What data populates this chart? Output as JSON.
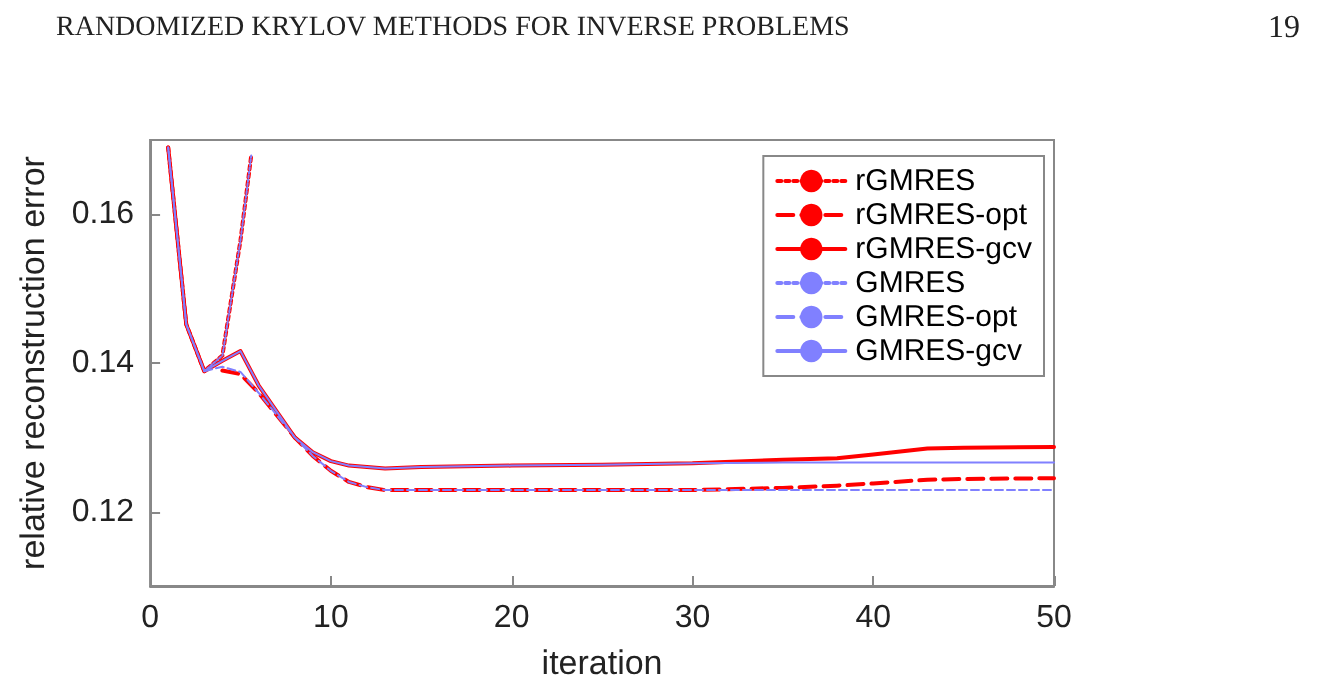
{
  "chart_data": {
    "type": "line",
    "xlabel": "iteration",
    "ylabel": "relative reconstruction error",
    "annotations": [
      "RANDOMIZED KRYLOV METHODS FOR INVERSE PROBLEMS",
      "19"
    ],
    "xlim": [
      0,
      50
    ],
    "xticks": [
      0,
      10,
      20,
      30,
      40,
      50
    ],
    "ylim": [
      0.11,
      0.17
    ],
    "yticks": [
      0.12,
      0.14,
      0.16
    ],
    "grid": false,
    "legend": "top right",
    "marker": "none",
    "series": [
      {
        "name": "rGMRES",
        "color": "#ff0000",
        "line_style": "dotted",
        "x": [
          1,
          2,
          3,
          4,
          5,
          5.6
        ],
        "values": [
          0.169,
          0.1452,
          0.1389,
          0.141,
          0.1565,
          0.168
        ]
      },
      {
        "name": "rGMRES-opt",
        "color": "#ff0000",
        "line_style": "dashed",
        "x": [
          4,
          5,
          6,
          7,
          8,
          9,
          10,
          11,
          12,
          13,
          15,
          20,
          25,
          30,
          35,
          38,
          40,
          43,
          45,
          50
        ],
        "values": [
          0.139,
          0.1385,
          0.136,
          0.133,
          0.13,
          0.1275,
          0.1255,
          0.124,
          0.1233,
          0.1229,
          0.1229,
          0.1229,
          0.1229,
          0.1229,
          0.1232,
          0.1235,
          0.1238,
          0.1243,
          0.1244,
          0.1245
        ]
      },
      {
        "name": "rGMRES-gcv",
        "color": "#ff0000",
        "line_style": "solid",
        "x": [
          1,
          2,
          3,
          4,
          5,
          6,
          7,
          8,
          9,
          10,
          11,
          13,
          15,
          20,
          25,
          30,
          35,
          38,
          40,
          43,
          45,
          50
        ],
        "values": [
          0.169,
          0.1452,
          0.1389,
          0.1403,
          0.1416,
          0.137,
          0.1335,
          0.13,
          0.128,
          0.1268,
          0.1262,
          0.1258,
          0.126,
          0.1262,
          0.1263,
          0.1265,
          0.127,
          0.1272,
          0.1277,
          0.1285,
          0.1286,
          0.1287
        ]
      },
      {
        "name": "GMRES",
        "color": "#8080ff",
        "line_style": "dotted",
        "x": [
          1,
          2,
          3,
          4,
          5,
          5.6
        ],
        "values": [
          0.169,
          0.1452,
          0.1389,
          0.141,
          0.1565,
          0.168
        ]
      },
      {
        "name": "GMRES-opt",
        "color": "#8080ff",
        "line_style": "dashed",
        "x": [
          3,
          4,
          5,
          6,
          7,
          8,
          9,
          10,
          11,
          12,
          13,
          15,
          20,
          25,
          30,
          35,
          40,
          45,
          50
        ],
        "values": [
          0.1389,
          0.1395,
          0.1388,
          0.136,
          0.133,
          0.13,
          0.1275,
          0.1255,
          0.124,
          0.1233,
          0.1229,
          0.1229,
          0.1229,
          0.1229,
          0.1229,
          0.1229,
          0.1229,
          0.1229,
          0.1229
        ]
      },
      {
        "name": "GMRES-gcv",
        "color": "#8080ff",
        "line_style": "solid",
        "x": [
          1,
          2,
          3,
          4,
          5,
          6,
          7,
          8,
          9,
          10,
          11,
          13,
          15,
          20,
          25,
          30,
          35,
          38,
          40,
          43,
          45,
          50
        ],
        "values": [
          0.169,
          0.1452,
          0.1389,
          0.1403,
          0.1416,
          0.137,
          0.1335,
          0.13,
          0.128,
          0.1268,
          0.1262,
          0.1258,
          0.126,
          0.1262,
          0.1263,
          0.1265,
          0.1266,
          0.1266,
          0.1266,
          0.1266,
          0.1266,
          0.1266
        ]
      }
    ]
  }
}
